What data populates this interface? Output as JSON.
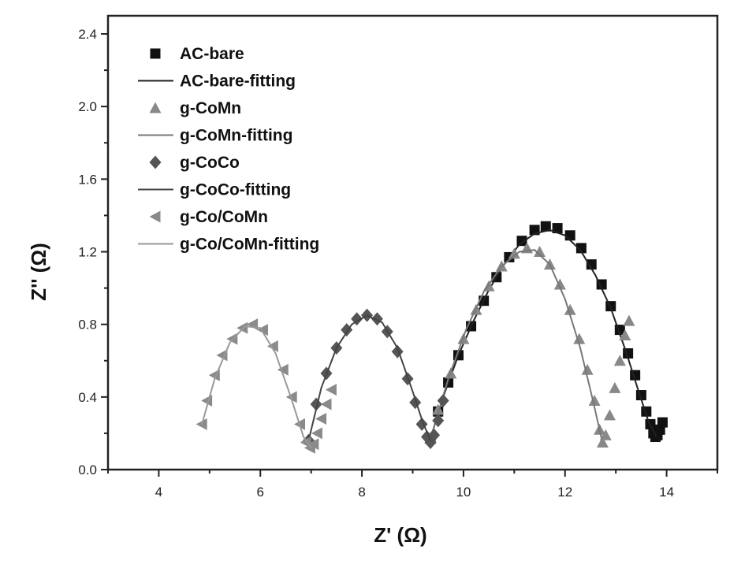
{
  "chart_data": {
    "type": "scatter",
    "title": "",
    "xlabel": "Z' (Ω)",
    "ylabel": "Z'' (Ω)",
    "xlim": [
      3,
      15
    ],
    "ylim": [
      0,
      2.5
    ],
    "xticks": [
      4,
      6,
      8,
      10,
      12,
      14
    ],
    "xtick_labels": [
      "4",
      "6",
      "8",
      "10",
      "12",
      "14"
    ],
    "yticks": [
      0.0,
      0.4,
      0.8,
      1.2,
      1.6,
      2.0,
      2.4
    ],
    "ytick_labels": [
      "0.0",
      "0.4",
      "0.8",
      "1.2",
      "1.6",
      "2.0",
      "2.4"
    ],
    "legend_position": "top-left",
    "series": [
      {
        "name": "AC-bare",
        "kind": "marker",
        "marker": "square",
        "color": "#111111",
        "x": [
          9.35,
          9.5,
          9.7,
          9.9,
          10.15,
          10.4,
          10.65,
          10.9,
          11.15,
          11.4,
          11.62,
          11.85,
          12.1,
          12.32,
          12.52,
          12.72,
          12.9,
          13.08,
          13.24,
          13.38,
          13.5,
          13.6,
          13.68,
          13.74,
          13.78,
          13.82,
          13.87,
          13.92
        ],
        "y": [
          0.17,
          0.32,
          0.48,
          0.63,
          0.79,
          0.93,
          1.06,
          1.17,
          1.26,
          1.32,
          1.34,
          1.33,
          1.29,
          1.22,
          1.13,
          1.02,
          0.9,
          0.77,
          0.64,
          0.52,
          0.41,
          0.32,
          0.25,
          0.2,
          0.18,
          0.19,
          0.22,
          0.26
        ]
      },
      {
        "name": "AC-bare-fitting",
        "kind": "line",
        "color": "#222222",
        "x": [
          9.35,
          9.6,
          9.9,
          10.2,
          10.5,
          10.8,
          11.1,
          11.4,
          11.7,
          12.0,
          12.3,
          12.6,
          12.9,
          13.2,
          13.45,
          13.65,
          13.8
        ],
        "y": [
          0.17,
          0.4,
          0.63,
          0.82,
          0.99,
          1.13,
          1.24,
          1.3,
          1.32,
          1.29,
          1.21,
          1.07,
          0.89,
          0.65,
          0.43,
          0.26,
          0.18
        ]
      },
      {
        "name": "g-CoMn",
        "kind": "marker",
        "marker": "triangle-up",
        "color": "#888888",
        "x": [
          9.35,
          9.5,
          9.75,
          10.0,
          10.25,
          10.5,
          10.75,
          11.0,
          11.25,
          11.5,
          11.7,
          11.9,
          12.1,
          12.28,
          12.44,
          12.58,
          12.68,
          12.74,
          12.8,
          12.88,
          12.98,
          13.08,
          13.18,
          13.26
        ],
        "y": [
          0.17,
          0.33,
          0.53,
          0.72,
          0.88,
          1.01,
          1.12,
          1.19,
          1.22,
          1.2,
          1.13,
          1.02,
          0.88,
          0.72,
          0.55,
          0.38,
          0.22,
          0.15,
          0.19,
          0.3,
          0.45,
          0.6,
          0.74,
          0.82
        ]
      },
      {
        "name": "g-CoMn-fitting",
        "kind": "line",
        "color": "#777777",
        "x": [
          9.35,
          9.7,
          10.05,
          10.4,
          10.75,
          11.1,
          11.4,
          11.7,
          12.0,
          12.3,
          12.55,
          12.72
        ],
        "y": [
          0.17,
          0.5,
          0.77,
          0.98,
          1.12,
          1.2,
          1.21,
          1.13,
          0.94,
          0.67,
          0.38,
          0.17
        ]
      },
      {
        "name": "g-CoCo",
        "kind": "marker",
        "marker": "diamond",
        "color": "#555555",
        "x": [
          6.95,
          7.1,
          7.3,
          7.5,
          7.7,
          7.9,
          8.1,
          8.3,
          8.5,
          8.7,
          8.9,
          9.05,
          9.18,
          9.28,
          9.35,
          9.42,
          9.5,
          9.6
        ],
        "y": [
          0.16,
          0.36,
          0.53,
          0.67,
          0.77,
          0.83,
          0.85,
          0.83,
          0.76,
          0.65,
          0.5,
          0.37,
          0.25,
          0.18,
          0.15,
          0.19,
          0.27,
          0.38
        ]
      },
      {
        "name": "g-CoCo-fitting",
        "kind": "line",
        "color": "#444444",
        "x": [
          6.95,
          7.2,
          7.5,
          7.8,
          8.1,
          8.4,
          8.7,
          9.0,
          9.2,
          9.35
        ],
        "y": [
          0.16,
          0.45,
          0.67,
          0.8,
          0.85,
          0.81,
          0.67,
          0.43,
          0.26,
          0.16
        ]
      },
      {
        "name": "g-Co/CoMn",
        "kind": "marker",
        "marker": "triangle-left",
        "color": "#8a8a8a",
        "x": [
          4.85,
          4.95,
          5.1,
          5.25,
          5.45,
          5.65,
          5.85,
          6.05,
          6.25,
          6.45,
          6.62,
          6.78,
          6.9,
          6.98,
          7.05,
          7.12,
          7.2,
          7.3,
          7.4
        ],
        "y": [
          0.25,
          0.38,
          0.52,
          0.63,
          0.72,
          0.78,
          0.8,
          0.77,
          0.68,
          0.55,
          0.4,
          0.25,
          0.15,
          0.12,
          0.14,
          0.2,
          0.28,
          0.36,
          0.44
        ]
      },
      {
        "name": "g-Co/CoMn-fitting",
        "kind": "line",
        "color": "#999999",
        "x": [
          4.85,
          5.1,
          5.4,
          5.7,
          6.0,
          6.3,
          6.6,
          6.85,
          7.0
        ],
        "y": [
          0.25,
          0.5,
          0.7,
          0.79,
          0.78,
          0.64,
          0.4,
          0.18,
          0.12
        ]
      }
    ]
  }
}
